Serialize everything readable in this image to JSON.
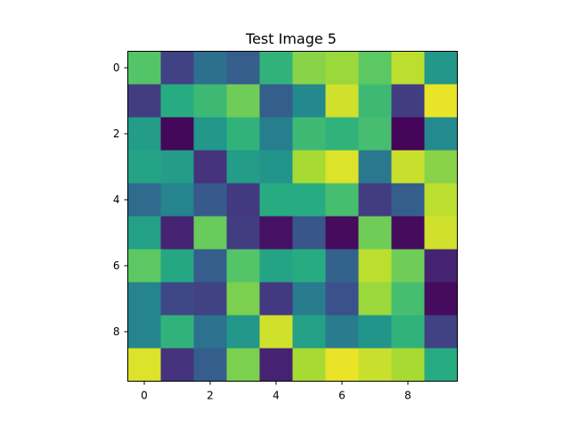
{
  "chart_data": {
    "type": "heatmap",
    "title": "Test Image 5",
    "xlabel": "",
    "ylabel": "",
    "x": [
      0,
      1,
      2,
      3,
      4,
      5,
      6,
      7,
      8,
      9
    ],
    "y": [
      0,
      1,
      2,
      3,
      4,
      5,
      6,
      7,
      8,
      9
    ],
    "x_ticks": [
      0,
      2,
      4,
      6,
      8
    ],
    "y_ticks": [
      0,
      2,
      4,
      6,
      8
    ],
    "y_axis_inverted": true,
    "colormap": "viridis",
    "vmin": 0.0,
    "vmax": 1.0,
    "grid": false,
    "legend": "none",
    "values": [
      [
        0.73,
        0.2,
        0.37,
        0.3,
        0.65,
        0.82,
        0.85,
        0.75,
        0.9,
        0.53
      ],
      [
        0.18,
        0.62,
        0.68,
        0.78,
        0.3,
        0.47,
        0.93,
        0.68,
        0.18,
        0.97
      ],
      [
        0.55,
        0.02,
        0.53,
        0.65,
        0.43,
        0.68,
        0.65,
        0.7,
        0.01,
        0.48
      ],
      [
        0.58,
        0.55,
        0.15,
        0.55,
        0.52,
        0.87,
        0.95,
        0.4,
        0.92,
        0.82
      ],
      [
        0.35,
        0.45,
        0.28,
        0.17,
        0.62,
        0.62,
        0.7,
        0.18,
        0.3,
        0.9
      ],
      [
        0.57,
        0.1,
        0.77,
        0.18,
        0.05,
        0.27,
        0.03,
        0.78,
        0.03,
        0.93
      ],
      [
        0.75,
        0.6,
        0.3,
        0.73,
        0.58,
        0.62,
        0.32,
        0.9,
        0.78,
        0.1
      ],
      [
        0.45,
        0.22,
        0.2,
        0.8,
        0.17,
        0.42,
        0.25,
        0.85,
        0.7,
        0.03
      ],
      [
        0.45,
        0.65,
        0.38,
        0.53,
        0.93,
        0.57,
        0.42,
        0.52,
        0.65,
        0.2
      ],
      [
        0.95,
        0.15,
        0.3,
        0.8,
        0.1,
        0.87,
        0.97,
        0.92,
        0.87,
        0.62
      ]
    ]
  }
}
